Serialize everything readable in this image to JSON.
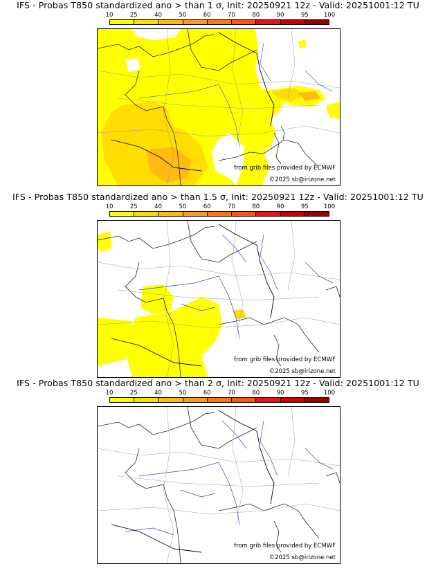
{
  "colorscale": {
    "labels": [
      "10",
      "25",
      "40",
      "50",
      "60",
      "70",
      "80",
      "90",
      "95",
      "100"
    ],
    "colors": [
      "#ffff00",
      "#ffdd00",
      "#ffbb11",
      "#ff9922",
      "#ff7711",
      "#ff5511",
      "#ee1111",
      "#cc0000",
      "#990000",
      "#660000"
    ]
  },
  "panels": [
    {
      "title": "IFS - Probas T850  standardized ano > than 1 σ, Init: 20250921 12z - Valid: 20251001:12 TU",
      "credit": "from grib files provided by ECMWF",
      "copyright": "©2025 sb@irizone.net"
    },
    {
      "title": "IFS - Probas T850  standardized ano > than 1.5 σ, Init: 20250921 12z - Valid: 20251001:12 TU",
      "credit": "from grib files provided by ECMWF",
      "copyright": "©2025 sb@irizone.net"
    },
    {
      "title": "IFS - Probas T850  standardized ano > than 2 σ, Init: 20250921 12z - Valid: 20251001:12 TU",
      "credit": "from grib files provided by ECMWF",
      "copyright": "©2025 sb@irizone.net"
    }
  ]
}
